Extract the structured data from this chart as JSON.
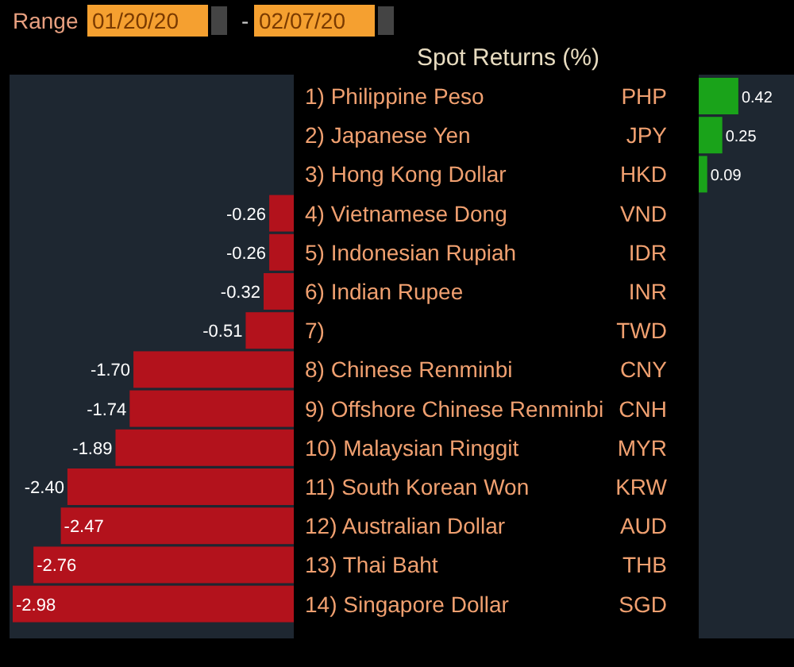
{
  "chart_data": [
    {
      "type": "bar",
      "orientation": "horizontal",
      "title": "Spot Returns (%)",
      "annotations": [
        "Range",
        "01/20/20",
        "-",
        "02/07/20"
      ],
      "categories": [
        "1) Philippine Peso",
        "2) Japanese Yen",
        "3) Hong Kong Dollar",
        "4) Vietnamese Dong",
        "5) Indonesian Rupiah",
        "6) Indian Rupee",
        "7)",
        "8) Chinese Renminbi",
        "9) Offshore Chinese Renminbi",
        "10) Malaysian Ringgit",
        "11) South Korean Won",
        "12) Australian Dollar",
        "13) Thai Baht",
        "14) Singapore Dollar"
      ],
      "y2_categories": [
        "PHP",
        "JPY",
        "HKD",
        "VND",
        "IDR",
        "INR",
        "TWD",
        "CNY",
        "CNH",
        "MYR",
        "KRW",
        "AUD",
        "THB",
        "SGD"
      ],
      "values": [
        null,
        null,
        null,
        -0.26,
        -0.26,
        -0.32,
        -0.51,
        -1.7,
        -1.74,
        -1.89,
        -2.4,
        -2.47,
        -2.76,
        -2.98
      ],
      "color": "#b3121c",
      "value_labels": [
        null,
        null,
        null,
        "-0.26",
        "-0.26",
        "-0.32",
        "-0.51",
        "-1.70",
        "-1.74",
        "-1.89",
        "-2.40",
        "-2.47",
        "-2.76",
        "-2.98"
      ]
    },
    {
      "type": "bar",
      "orientation": "horizontal",
      "categories": [
        null,
        null,
        null,
        null,
        null,
        null,
        null,
        null,
        null,
        null,
        null,
        null,
        null,
        null
      ],
      "values": [
        0.42,
        0.25,
        0.09,
        null,
        null,
        null,
        null,
        null,
        null,
        null,
        null,
        null,
        null,
        null
      ],
      "color": "#1aa31a",
      "data_labels": true
    }
  ]
}
